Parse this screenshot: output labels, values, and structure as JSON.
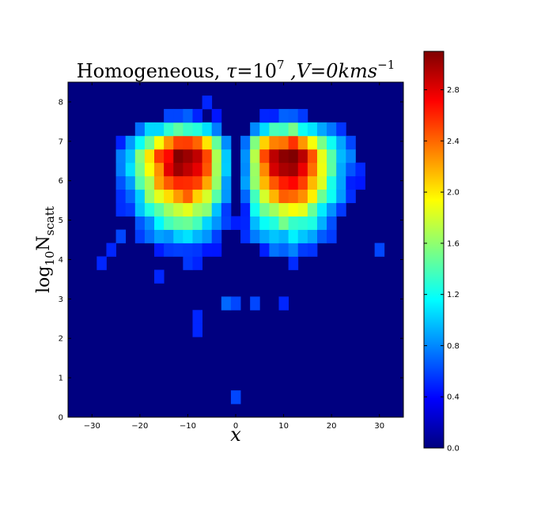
{
  "chart_data": {
    "type": "heatmap",
    "title": "Homogeneous, τ=10⁷ ,V=0kms⁻¹",
    "title_parts": {
      "prefix": "Homogeneous, ",
      "tau_symbol": "τ",
      "tau_eq": "=10",
      "tau_exp": "7",
      "v_part": " ,V=0kms",
      "v_exp": "−1"
    },
    "xlabel": "x",
    "ylabel": "log₁₀N_scatt",
    "ylabel_parts": {
      "base": "log",
      "sub": "10",
      "var": "N",
      "var_sub": "scatt"
    },
    "xlim": [
      -35,
      35
    ],
    "ylim": [
      0,
      8.5
    ],
    "xticks": [
      "−30",
      "−20",
      "−10",
      "0",
      "10",
      "20",
      "30"
    ],
    "xtick_values": [
      -30,
      -20,
      -10,
      0,
      10,
      20,
      30
    ],
    "yticks": [
      "0",
      "1",
      "2",
      "3",
      "4",
      "5",
      "6",
      "7",
      "8"
    ],
    "ytick_values": [
      0,
      1,
      2,
      3,
      4,
      5,
      6,
      7,
      8
    ],
    "colorbar": {
      "range": [
        0,
        3.1
      ],
      "ticks": [
        "0.0",
        "0.4",
        "0.8",
        "1.2",
        "1.6",
        "2.0",
        "2.4",
        "2.8"
      ],
      "tick_values": [
        0,
        0.4,
        0.8,
        1.2,
        1.6,
        2.0,
        2.4,
        2.8
      ],
      "colormap": "jet"
    },
    "grid": false,
    "bins": {
      "nx": 35,
      "ny": 25,
      "x_range": [
        -35,
        35
      ],
      "y_range": [
        0,
        8.5
      ]
    },
    "model": {
      "peaks": [
        {
          "x": -11,
          "y": 6.6,
          "value": 3.05,
          "sx": 7.5,
          "sy": 0.75
        },
        {
          "x": 11,
          "y": 6.6,
          "value": 3.05,
          "sx": 7.5,
          "sy": 0.75
        }
      ],
      "center_dip": {
        "x": 0,
        "width": 2.2,
        "depth": 0.55
      },
      "background": 0.0
    },
    "isolated_cells": [
      {
        "x": 0.5,
        "y": 0.6,
        "value": 0.6
      },
      {
        "x": -7.5,
        "y": 2.3,
        "value": 0.5
      },
      {
        "x": -7.5,
        "y": 2.5,
        "value": 0.5
      },
      {
        "x": -1.5,
        "y": 2.8,
        "value": 0.7
      },
      {
        "x": 0.5,
        "y": 2.8,
        "value": 0.6
      },
      {
        "x": 4.5,
        "y": 2.8,
        "value": 0.6
      },
      {
        "x": 10.5,
        "y": 2.8,
        "value": 0.5
      },
      {
        "x": -16.5,
        "y": 3.6,
        "value": 0.5
      },
      {
        "x": -25.5,
        "y": 4.4,
        "value": 0.5
      },
      {
        "x": -27.5,
        "y": 4.0,
        "value": 0.5
      },
      {
        "x": 30.5,
        "y": 4.1,
        "value": 0.6
      },
      {
        "x": -23.5,
        "y": 4.6,
        "value": 0.6
      },
      {
        "x": -6.5,
        "y": 8.1,
        "value": 0.5
      },
      {
        "x": -2.5,
        "y": 5.2,
        "value": 0.4
      }
    ]
  }
}
